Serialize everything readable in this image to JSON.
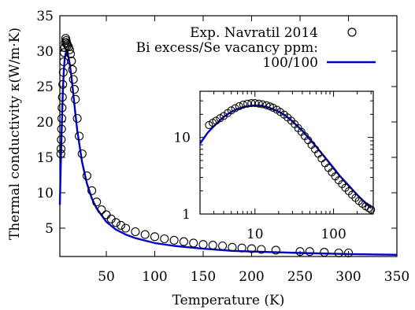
{
  "chart_data": [
    {
      "type": "scatter",
      "role": "main",
      "xlabel": "Temperature (K)",
      "ylabel": "Thermal conductivity  κ(W/m·K)",
      "xlim": [
        2,
        350
      ],
      "ylim": [
        1,
        35
      ],
      "xticks": [
        50,
        100,
        150,
        200,
        250,
        300,
        350
      ],
      "yticks": [
        5,
        10,
        15,
        20,
        25,
        30,
        35
      ],
      "legend_placement": "top-right",
      "legend_title": "Bi excess/Se vacancy ppm:",
      "grid": false,
      "series": [
        {
          "name": "Exp. Navratil 2014",
          "kind": "markers",
          "marker": "open-circle",
          "color": "#000000",
          "x": [
            3,
            3.2,
            3.5,
            3.8,
            4,
            4.3,
            4.6,
            5,
            5.5,
            6,
            6.5,
            7,
            7.5,
            8,
            8.5,
            9,
            9.5,
            10,
            11,
            12,
            13,
            14,
            15,
            16,
            17,
            18,
            20,
            22,
            25,
            30,
            35,
            40,
            45,
            50,
            55,
            60,
            65,
            70,
            80,
            90,
            100,
            110,
            120,
            130,
            140,
            150,
            160,
            170,
            180,
            190,
            200,
            210,
            225,
            250,
            260,
            275,
            290,
            300
          ],
          "y": [
            15.5,
            16.2,
            17.5,
            19,
            20.5,
            22,
            23.5,
            25.3,
            27,
            28.5,
            29.8,
            30.5,
            31.2,
            31.8,
            31.5,
            31.2,
            31,
            30.8,
            30.6,
            30.2,
            29.6,
            28.6,
            27.4,
            26,
            24.6,
            23.2,
            20.5,
            18,
            15.5,
            12.4,
            10.3,
            8.7,
            7.6,
            6.9,
            6.3,
            5.8,
            5.4,
            5.0,
            4.5,
            4.1,
            3.8,
            3.5,
            3.3,
            3.1,
            2.9,
            2.7,
            2.6,
            2.5,
            2.3,
            2.2,
            2.1,
            2.0,
            1.9,
            1.7,
            1.7,
            1.6,
            1.5,
            1.5
          ]
        },
        {
          "name": "100/100",
          "kind": "line",
          "color": "#0000cc",
          "x": [
            2,
            3,
            4,
            5,
            6,
            7,
            8,
            9,
            10,
            12,
            14,
            16,
            18,
            20,
            25,
            30,
            35,
            40,
            50,
            60,
            70,
            80,
            100,
            120,
            150,
            180,
            200,
            250,
            300,
            350
          ],
          "y": [
            8.3,
            14,
            19.5,
            24,
            27,
            28.8,
            29.7,
            30.0,
            29.8,
            28.4,
            26.3,
            23.8,
            21.2,
            18.8,
            14.3,
            11.3,
            9.2,
            7.8,
            5.9,
            4.8,
            4.1,
            3.6,
            2.9,
            2.5,
            2.1,
            1.8,
            1.7,
            1.5,
            1.35,
            1.25
          ]
        }
      ]
    },
    {
      "type": "scatter",
      "role": "inset",
      "xscale": "log",
      "yscale": "log",
      "xlim": [
        2,
        320
      ],
      "ylim": [
        1,
        40
      ],
      "xticks": [
        10,
        100
      ],
      "yticks": [
        1,
        10
      ],
      "series": [
        {
          "name": "Exp. Navratil 2014",
          "kind": "markers",
          "marker": "open-circle",
          "color": "#000000",
          "x": [
            2.6,
            2.9,
            3.2,
            3.6,
            4.0,
            4.5,
            5.0,
            5.6,
            6.3,
            7.1,
            8.0,
            9.0,
            10.0,
            11.2,
            12.5,
            14.0,
            15.5,
            17.0,
            19.0,
            21.0,
            23.5,
            26.0,
            29.0,
            32.0,
            35.5,
            39.0,
            43.0,
            47.5,
            52.5,
            58.0,
            64.0,
            70.5,
            78.0,
            86.0,
            95.0,
            105,
            116,
            128,
            141,
            156,
            172,
            190,
            210,
            232,
            256,
            280,
            300
          ],
          "y": [
            14.5,
            15.5,
            16.5,
            17.8,
            19.0,
            20.8,
            22.5,
            24.0,
            25.5,
            26.8,
            27.5,
            28.0,
            28.0,
            27.6,
            27.0,
            26.3,
            25.4,
            24.4,
            23.0,
            21.5,
            19.8,
            18.2,
            16.5,
            14.9,
            13.2,
            11.8,
            10.4,
            9.2,
            8.0,
            7.0,
            6.1,
            5.3,
            4.6,
            4.0,
            3.5,
            3.1,
            2.75,
            2.45,
            2.2,
            1.98,
            1.78,
            1.62,
            1.48,
            1.36,
            1.26,
            1.19,
            1.14
          ]
        },
        {
          "name": "100/100",
          "kind": "line",
          "color": "#0000cc",
          "x": [
            2,
            2.5,
            3,
            4,
            5,
            6,
            7,
            8,
            10,
            12,
            15,
            20,
            25,
            30,
            40,
            50,
            60,
            80,
            100,
            120,
            150,
            200,
            250,
            300
          ],
          "y": [
            8.3,
            11.5,
            14,
            18.5,
            21.5,
            23.5,
            24.8,
            25.6,
            26.2,
            25.8,
            24.6,
            21.8,
            18.9,
            16.2,
            12.2,
            9.4,
            7.6,
            5.3,
            4.0,
            3.15,
            2.45,
            1.78,
            1.42,
            1.2
          ]
        }
      ]
    }
  ]
}
